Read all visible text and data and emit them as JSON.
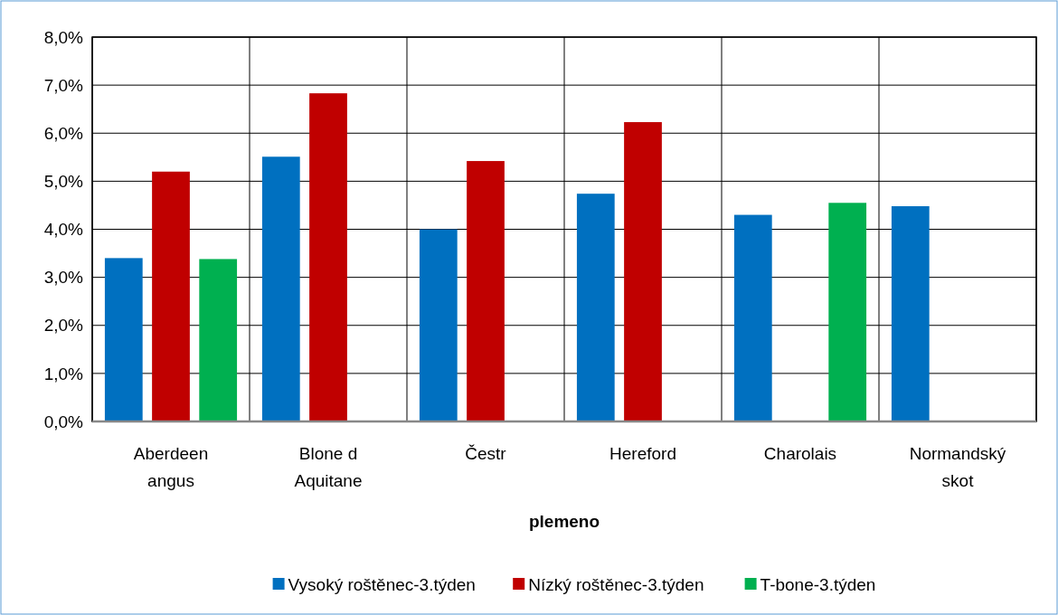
{
  "chart_data": {
    "type": "bar",
    "xlabel": "plemeno",
    "categories": [
      "Aberdeen angus",
      "Blone d Aquitane",
      "Čestr",
      "Hereford",
      "Charolais",
      "Normandský skot"
    ],
    "series": [
      {
        "name": "Vysoký roštěnec-3.týden",
        "color": "#0070c0",
        "values": [
          3.4,
          5.51,
          4.0,
          4.74,
          4.3,
          4.48
        ]
      },
      {
        "name": "Nízký roštěnec-3.týden",
        "color": "#c00000",
        "values": [
          5.2,
          6.83,
          5.42,
          6.23,
          null,
          null
        ]
      },
      {
        "name": "T-bone-3.týden",
        "color": "#00b050",
        "values": [
          3.38,
          null,
          null,
          null,
          4.55,
          null
        ]
      }
    ],
    "ylim": [
      0,
      8
    ],
    "yticks": [
      {
        "value": 0,
        "label": "0,0%"
      },
      {
        "value": 1,
        "label": "1,0%"
      },
      {
        "value": 2,
        "label": "2,0%"
      },
      {
        "value": 3,
        "label": "3,0%"
      },
      {
        "value": 4,
        "label": "4,0%"
      },
      {
        "value": 5,
        "label": "5,0%"
      },
      {
        "value": 6,
        "label": "6,0%"
      },
      {
        "value": 7,
        "label": "7,0%"
      },
      {
        "value": 8,
        "label": "8,0%"
      }
    ],
    "grid": true,
    "legend": "bottom"
  }
}
